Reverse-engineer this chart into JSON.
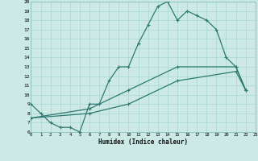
{
  "xlabel": "Humidex (Indice chaleur)",
  "bg_color": "#cce9e5",
  "line_color": "#2d7a70",
  "grid_color": "#a8d8d0",
  "xlim": [
    0,
    23
  ],
  "ylim": [
    6,
    20
  ],
  "xticks": [
    0,
    1,
    2,
    3,
    4,
    5,
    6,
    7,
    8,
    9,
    10,
    11,
    12,
    13,
    14,
    15,
    16,
    17,
    18,
    19,
    20,
    21,
    22,
    23
  ],
  "yticks": [
    6,
    7,
    8,
    9,
    10,
    11,
    12,
    13,
    14,
    15,
    16,
    17,
    18,
    19,
    20
  ],
  "line1_x": [
    0,
    1,
    2,
    3,
    4,
    5,
    6,
    7,
    8,
    9,
    10,
    11,
    12,
    13,
    14,
    15,
    16,
    17,
    18,
    19,
    20,
    21,
    22
  ],
  "line1_y": [
    9,
    8,
    7,
    6.5,
    6.5,
    6,
    9,
    9,
    11.5,
    13,
    13,
    15.5,
    17.5,
    19.5,
    20,
    18,
    19,
    18.5,
    18,
    17,
    14,
    13,
    10.5
  ],
  "line2_x": [
    0,
    6,
    10,
    15,
    21,
    22
  ],
  "line2_y": [
    7.5,
    8.5,
    10.5,
    13,
    13,
    10.5
  ],
  "line3_x": [
    0,
    6,
    10,
    15,
    21,
    22
  ],
  "line3_y": [
    7.5,
    8,
    9,
    11.5,
    12.5,
    10.5
  ]
}
